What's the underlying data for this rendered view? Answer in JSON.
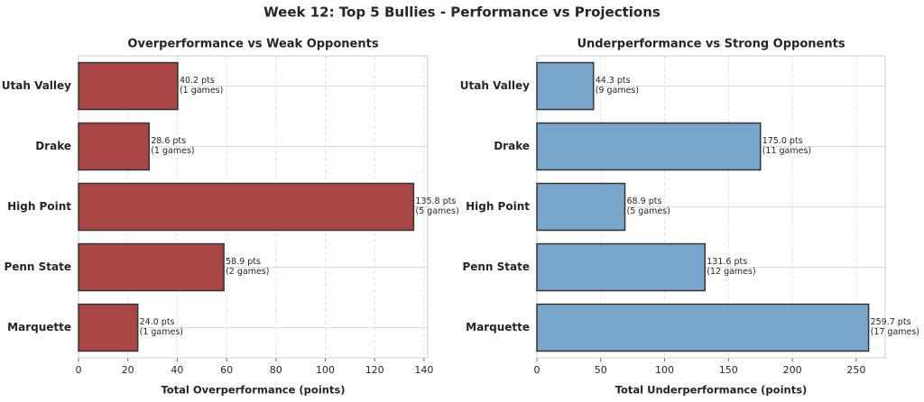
{
  "title": "Week 12: Top 5 Bullies - Performance vs Projections",
  "chart_data": [
    {
      "type": "bar",
      "orientation": "horizontal",
      "title": "Overperformance vs Weak Opponents",
      "xlabel": "Total Overperformance (points)",
      "categories": [
        "Utah Valley",
        "Drake",
        "High Point",
        "Penn State",
        "Marquette"
      ],
      "values": [
        40.2,
        28.6,
        135.8,
        58.9,
        24.0
      ],
      "value_labels": [
        "40.2 pts",
        "28.6 pts",
        "135.8 pts",
        "58.9 pts",
        "24.0 pts"
      ],
      "games_labels": [
        "(1 games)",
        "(1 games)",
        "(5 games)",
        "(2 games)",
        "(1 games)"
      ],
      "color": "#a94646",
      "xlim": [
        0,
        141.5
      ],
      "xticks": [
        0,
        20,
        40,
        60,
        80,
        100,
        120,
        140
      ],
      "grid": true
    },
    {
      "type": "bar",
      "orientation": "horizontal",
      "title": "Underperformance vs Strong Opponents",
      "xlabel": "Total Underperformance (points)",
      "categories": [
        "Utah Valley",
        "Drake",
        "High Point",
        "Penn State",
        "Marquette"
      ],
      "values": [
        44.3,
        175.0,
        68.9,
        131.6,
        259.7
      ],
      "value_labels": [
        "44.3 pts",
        "175.0 pts",
        "68.9 pts",
        "131.6 pts",
        "259.7 pts"
      ],
      "games_labels": [
        "(9 games)",
        "(11 games)",
        "(5 games)",
        "(12 games)",
        "(17 games)"
      ],
      "color": "#7aa6cc",
      "xlim": [
        0,
        272.7
      ],
      "xticks": [
        0,
        50,
        100,
        150,
        200,
        250
      ],
      "grid": true
    }
  ]
}
